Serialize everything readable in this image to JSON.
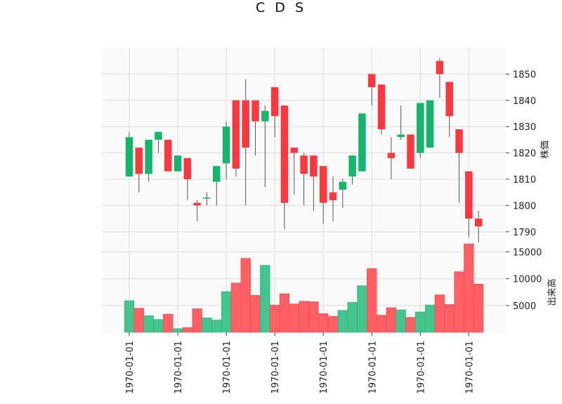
{
  "chart_data": {
    "type": "candlestick",
    "title": "C D S",
    "price_axis_label": "株価",
    "volume_axis_label": "出来高",
    "price_ylim": [
      1783,
      1860
    ],
    "volume_ylim": [
      0,
      16500
    ],
    "price_ticks": [
      1790,
      1800,
      1810,
      1820,
      1830,
      1840,
      1850
    ],
    "volume_ticks": [
      5000,
      10000,
      15000
    ],
    "x_tick_labels": [
      "1970-01-01",
      "1970-01-01",
      "1970-01-01",
      "1970-01-01",
      "1970-01-01",
      "1970-01-01",
      "1970-01-01",
      "1970-01-01"
    ],
    "x_tick_indices": [
      0,
      5,
      10,
      15,
      20,
      25,
      30,
      35
    ],
    "up_color": "#16b46e",
    "down_color": "#f93840",
    "vol_up_color": "#45c48d",
    "vol_down_color": "#ff6066",
    "grid": true,
    "candles": [
      {
        "o": 1811,
        "h": 1828,
        "l": 1811,
        "c": 1826,
        "v": 5900
      },
      {
        "o": 1822,
        "h": 1822,
        "l": 1805,
        "c": 1812,
        "v": 4500
      },
      {
        "o": 1812,
        "h": 1825,
        "l": 1809,
        "c": 1825,
        "v": 3100
      },
      {
        "o": 1825,
        "h": 1828,
        "l": 1820,
        "c": 1828,
        "v": 2400
      },
      {
        "o": 1825,
        "h": 1825,
        "l": 1813,
        "c": 1813,
        "v": 3400
      },
      {
        "o": 1813,
        "h": 1819,
        "l": 1813,
        "c": 1819,
        "v": 700
      },
      {
        "o": 1818,
        "h": 1818,
        "l": 1802,
        "c": 1810,
        "v": 900
      },
      {
        "o": 1801,
        "h": 1802,
        "l": 1794,
        "c": 1800,
        "v": 4400
      },
      {
        "o": 1803,
        "h": 1805,
        "l": 1800,
        "c": 1803,
        "v": 2700
      },
      {
        "o": 1809,
        "h": 1815,
        "l": 1800,
        "c": 1815,
        "v": 2300
      },
      {
        "o": 1816,
        "h": 1832,
        "l": 1810,
        "c": 1830,
        "v": 7600
      },
      {
        "o": 1840,
        "h": 1840,
        "l": 1811,
        "c": 1814,
        "v": 9200
      },
      {
        "o": 1840,
        "h": 1848,
        "l": 1800,
        "c": 1822,
        "v": 13800
      },
      {
        "o": 1840,
        "h": 1840,
        "l": 1819,
        "c": 1832,
        "v": 6900
      },
      {
        "o": 1832,
        "h": 1838,
        "l": 1807,
        "c": 1836,
        "v": 12500
      },
      {
        "o": 1845,
        "h": 1845,
        "l": 1826,
        "c": 1834,
        "v": 5100
      },
      {
        "o": 1838,
        "h": 1838,
        "l": 1791,
        "c": 1801,
        "v": 7200
      },
      {
        "o": 1822,
        "h": 1822,
        "l": 1804,
        "c": 1820,
        "v": 5300
      },
      {
        "o": 1819,
        "h": 1820,
        "l": 1800,
        "c": 1812,
        "v": 5800
      },
      {
        "o": 1819,
        "h": 1819,
        "l": 1798,
        "c": 1811,
        "v": 5700
      },
      {
        "o": 1815,
        "h": 1815,
        "l": 1793,
        "c": 1801,
        "v": 3500
      },
      {
        "o": 1805,
        "h": 1811,
        "l": 1794,
        "c": 1802,
        "v": 3000
      },
      {
        "o": 1806,
        "h": 1810,
        "l": 1799,
        "c": 1809,
        "v": 4100
      },
      {
        "o": 1811,
        "h": 1819,
        "l": 1808,
        "c": 1819,
        "v": 5600
      },
      {
        "o": 1813,
        "h": 1835,
        "l": 1813,
        "c": 1835,
        "v": 8700
      },
      {
        "o": 1850,
        "h": 1850,
        "l": 1838,
        "c": 1845,
        "v": 11900
      },
      {
        "o": 1846,
        "h": 1846,
        "l": 1827,
        "c": 1829,
        "v": 3200
      },
      {
        "o": 1820,
        "h": 1826,
        "l": 1810,
        "c": 1818,
        "v": 4600
      },
      {
        "o": 1826,
        "h": 1838,
        "l": 1825,
        "c": 1827,
        "v": 4200
      },
      {
        "o": 1827,
        "h": 1827,
        "l": 1814,
        "c": 1814,
        "v": 2800
      },
      {
        "o": 1820,
        "h": 1839,
        "l": 1818,
        "c": 1839,
        "v": 3800
      },
      {
        "o": 1822,
        "h": 1840,
        "l": 1822,
        "c": 1840,
        "v": 5100
      },
      {
        "o": 1855,
        "h": 1856,
        "l": 1841,
        "c": 1850,
        "v": 7000
      },
      {
        "o": 1847,
        "h": 1847,
        "l": 1826,
        "c": 1834,
        "v": 5200
      },
      {
        "o": 1829,
        "h": 1829,
        "l": 1801,
        "c": 1820,
        "v": 11300
      },
      {
        "o": 1813,
        "h": 1813,
        "l": 1788,
        "c": 1795,
        "v": 16500
      },
      {
        "o": 1795,
        "h": 1798,
        "l": 1786,
        "c": 1792,
        "v": 9000
      }
    ]
  }
}
